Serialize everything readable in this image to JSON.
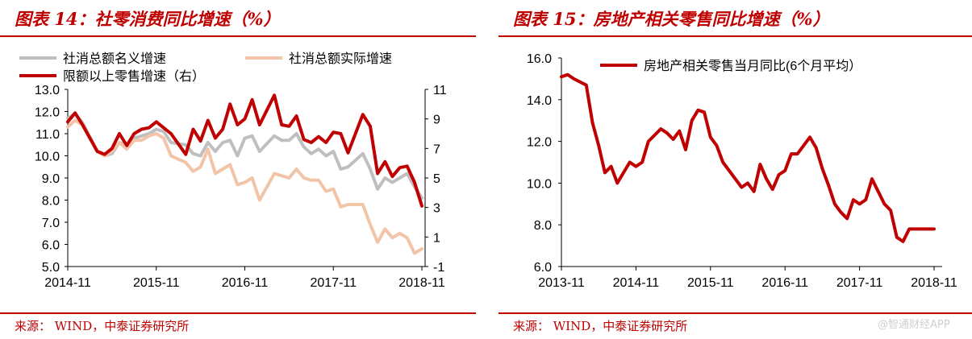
{
  "left": {
    "title": "图表 14：社零消费同比增速（%）",
    "source": "来源：   WIND，中泰证券研究所",
    "chart_data": {
      "type": "line",
      "x_ticks": [
        "2014-11",
        "2015-11",
        "2016-11",
        "2017-11",
        "2018-11"
      ],
      "y_left": {
        "min": 5.0,
        "max": 13.0,
        "ticks": [
          "5.0",
          "6.0",
          "7.0",
          "8.0",
          "9.0",
          "10.0",
          "11.0",
          "12.0",
          "13.0"
        ]
      },
      "y_right": {
        "min": -1,
        "max": 11,
        "ticks": [
          "-1",
          "1",
          "3",
          "5",
          "7",
          "9",
          "11"
        ]
      },
      "legend": [
        "社消总额名义增速",
        "社消总额实际增速",
        "限额以上零售增速（右）"
      ],
      "series": [
        {
          "name": "社消总额名义增速",
          "axis": "left",
          "color": "#bfbfbf",
          "x": [
            "2014-11",
            "2014-12",
            "2015-01",
            "2015-03",
            "2015-04",
            "2015-05",
            "2015-06",
            "2015-07",
            "2015-08",
            "2015-09",
            "2015-10",
            "2015-11",
            "2015-12",
            "2016-01",
            "2016-03",
            "2016-04",
            "2016-05",
            "2016-06",
            "2016-07",
            "2016-08",
            "2016-09",
            "2016-10",
            "2016-11",
            "2016-12",
            "2017-01",
            "2017-03",
            "2017-04",
            "2017-05",
            "2017-06",
            "2017-07",
            "2017-08",
            "2017-09",
            "2017-10",
            "2017-11",
            "2017-12",
            "2018-01",
            "2018-03",
            "2018-04",
            "2018-05",
            "2018-06",
            "2018-07",
            "2018-08",
            "2018-09",
            "2018-10",
            "2018-11"
          ],
          "values": [
            11.7,
            11.9,
            11.5,
            10.2,
            10.0,
            10.1,
            10.6,
            10.5,
            10.8,
            10.9,
            11.0,
            11.2,
            11.1,
            10.6,
            10.5,
            10.1,
            10.0,
            10.6,
            10.2,
            10.6,
            10.7,
            10.0,
            10.8,
            10.9,
            10.2,
            10.9,
            10.7,
            10.7,
            11.0,
            10.4,
            10.1,
            10.3,
            10.0,
            10.2,
            9.4,
            9.5,
            10.1,
            9.4,
            8.5,
            9.0,
            8.8,
            9.0,
            9.2,
            8.6,
            8.1
          ]
        },
        {
          "name": "社消总额实际增速",
          "axis": "left",
          "color": "#f2c4a8",
          "x": [
            "2014-11",
            "2014-12",
            "2015-01",
            "2015-03",
            "2015-04",
            "2015-05",
            "2015-06",
            "2015-07",
            "2015-08",
            "2015-09",
            "2015-10",
            "2015-11",
            "2015-12",
            "2016-01",
            "2016-03",
            "2016-04",
            "2016-05",
            "2016-06",
            "2016-07",
            "2016-08",
            "2016-09",
            "2016-10",
            "2016-11",
            "2016-12",
            "2017-01",
            "2017-03",
            "2017-04",
            "2017-05",
            "2017-06",
            "2017-07",
            "2017-08",
            "2017-09",
            "2017-10",
            "2017-11",
            "2017-12",
            "2018-01",
            "2018-03",
            "2018-04",
            "2018-05",
            "2018-06",
            "2018-07",
            "2018-08",
            "2018-09",
            "2018-10",
            "2018-11"
          ],
          "values": [
            11.3,
            11.6,
            11.4,
            10.2,
            10.0,
            10.2,
            10.6,
            10.3,
            10.7,
            10.7,
            10.9,
            11.0,
            10.8,
            10.0,
            9.7,
            9.3,
            9.5,
            10.3,
            9.2,
            9.4,
            9.6,
            8.7,
            8.8,
            9.0,
            8.0,
            9.2,
            9.1,
            9.0,
            9.4,
            9.0,
            8.9,
            8.9,
            8.4,
            8.5,
            7.7,
            7.8,
            7.8,
            6.9,
            6.1,
            6.7,
            6.3,
            6.5,
            6.3,
            5.6,
            5.8
          ]
        },
        {
          "name": "限额以上零售增速（右）",
          "axis": "right",
          "color": "#c00000",
          "x": [
            "2014-11",
            "2014-12",
            "2015-01",
            "2015-03",
            "2015-04",
            "2015-05",
            "2015-06",
            "2015-07",
            "2015-08",
            "2015-09",
            "2015-10",
            "2015-11",
            "2015-12",
            "2016-01",
            "2016-03",
            "2016-04",
            "2016-05",
            "2016-06",
            "2016-07",
            "2016-08",
            "2016-09",
            "2016-10",
            "2016-11",
            "2016-12",
            "2017-01",
            "2017-03",
            "2017-04",
            "2017-05",
            "2017-06",
            "2017-07",
            "2017-08",
            "2017-09",
            "2017-10",
            "2017-11",
            "2017-12",
            "2018-01",
            "2018-03",
            "2018-04",
            "2018-05",
            "2018-06",
            "2018-07",
            "2018-08",
            "2018-09",
            "2018-10",
            "2018-11"
          ],
          "values": [
            8.8,
            9.4,
            8.6,
            6.8,
            6.6,
            7.0,
            8.0,
            7.2,
            8.0,
            8.3,
            8.4,
            8.8,
            8.4,
            8.0,
            6.6,
            8.3,
            7.5,
            8.9,
            7.7,
            8.3,
            10.0,
            8.6,
            9.0,
            10.3,
            8.6,
            10.6,
            8.6,
            8.5,
            9.2,
            7.6,
            7.4,
            7.8,
            7.4,
            8.1,
            8.0,
            6.7,
            9.3,
            8.5,
            5.3,
            6.1,
            5.1,
            5.7,
            5.8,
            4.7,
            3.1
          ]
        }
      ]
    }
  },
  "right": {
    "title": "图表 15：房地产相关零售同比增速（%）",
    "source": "来源：   WIND，中泰证券研究所",
    "watermark": "@智通财经APP",
    "chart_data": {
      "type": "line",
      "x_ticks": [
        "2013-11",
        "2014-11",
        "2015-11",
        "2016-11",
        "2017-11",
        "2018-11"
      ],
      "y": {
        "min": 6.0,
        "max": 16.0,
        "ticks": [
          "6.0",
          "8.0",
          "10.0",
          "12.0",
          "14.0",
          "16.0"
        ]
      },
      "legend": [
        "房地产相关零售当月同比(6个月平均）"
      ],
      "series": [
        {
          "name": "房地产相关零售当月同比(6个月平均）",
          "color": "#c00000",
          "x": [
            "2013-11",
            "2013-12",
            "2014-01",
            "2014-03",
            "2014-04",
            "2014-05",
            "2014-06",
            "2014-07",
            "2014-08",
            "2014-09",
            "2014-10",
            "2014-11",
            "2014-12",
            "2015-01",
            "2015-03",
            "2015-04",
            "2015-05",
            "2015-06",
            "2015-07",
            "2015-08",
            "2015-09",
            "2015-10",
            "2015-11",
            "2015-12",
            "2016-01",
            "2016-03",
            "2016-04",
            "2016-05",
            "2016-06",
            "2016-07",
            "2016-08",
            "2016-09",
            "2016-10",
            "2016-11",
            "2016-12",
            "2017-01",
            "2017-03",
            "2017-04",
            "2017-05",
            "2017-06",
            "2017-07",
            "2017-08",
            "2017-09",
            "2017-10",
            "2017-11",
            "2017-12",
            "2018-01",
            "2018-03",
            "2018-04",
            "2018-05",
            "2018-06",
            "2018-07",
            "2018-08",
            "2018-09",
            "2018-10",
            "2018-11"
          ],
          "values": [
            15.1,
            15.2,
            15.0,
            14.7,
            12.9,
            11.8,
            10.5,
            10.8,
            10.0,
            10.5,
            11.0,
            10.8,
            11.0,
            12.0,
            12.6,
            12.4,
            12.1,
            12.5,
            11.6,
            13.0,
            13.5,
            13.4,
            12.2,
            11.8,
            11.0,
            10.2,
            9.8,
            10.0,
            9.6,
            10.9,
            10.2,
            9.7,
            10.4,
            10.6,
            11.4,
            11.4,
            12.2,
            11.7,
            10.7,
            9.9,
            9.0,
            8.6,
            8.3,
            9.2,
            9.0,
            9.2,
            10.2,
            9.0,
            8.7,
            7.4,
            7.2,
            7.8,
            7.8,
            7.8,
            7.8,
            7.8
          ]
        }
      ]
    }
  }
}
